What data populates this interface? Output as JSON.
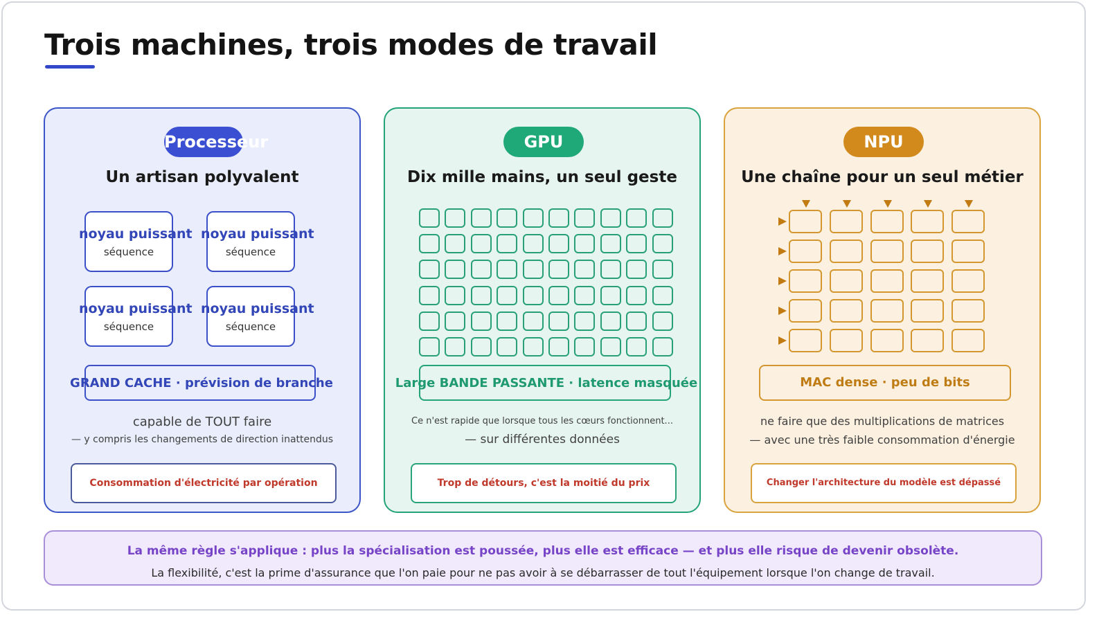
{
  "title": "Trois machines, trois modes de travail",
  "panels": [
    {
      "badge": "Processeur",
      "subtitle": "Un artisan polyvalent",
      "cores": [
        {
          "title": "noyau puissant",
          "sub": "séquence"
        },
        {
          "title": "noyau puissant",
          "sub": "séquence"
        },
        {
          "title": "noyau puissant",
          "sub": "séquence"
        },
        {
          "title": "noyau puissant",
          "sub": "séquence"
        }
      ],
      "feature": "GRAND CACHE · prévision de branche",
      "caption": "capable de TOUT faire",
      "caption2": "— y compris les changements de direction inattendus",
      "warning": "Consommation d'électricité par opération",
      "color": "#3a4fd2"
    },
    {
      "badge": "GPU",
      "subtitle": "Dix mille mains, un seul geste",
      "grid": {
        "rows": 6,
        "cols": 10
      },
      "feature": "Large BANDE PASSANTE · latence masquée",
      "caption": "Ce n'est rapide que lorsque tous les cœurs fonctionnent...",
      "caption2": "— sur différentes données",
      "warning": "Trop de détours, c'est la moitié du prix",
      "color": "#1fa878"
    },
    {
      "badge": "NPU",
      "subtitle": "Une chaîne pour un seul métier",
      "grid": {
        "rows": 5,
        "cols": 5
      },
      "feature": "MAC dense · peu de bits",
      "caption": "ne faire que des multiplications de matrices",
      "caption2": "— avec une très faible consommation d'énergie",
      "warning": "Changer l'architecture du modèle est dépassé",
      "color": "#d28a1c"
    }
  ],
  "footer": {
    "line1": "La même règle s'applique : plus la spécialisation est poussée, plus elle est efficace — et plus elle risque de devenir obsolète.",
    "line2": "La flexibilité, c'est la prime d'assurance que l'on paie pour ne pas avoir à se débarrasser de tout l'équipement lorsque l'on change de travail."
  }
}
